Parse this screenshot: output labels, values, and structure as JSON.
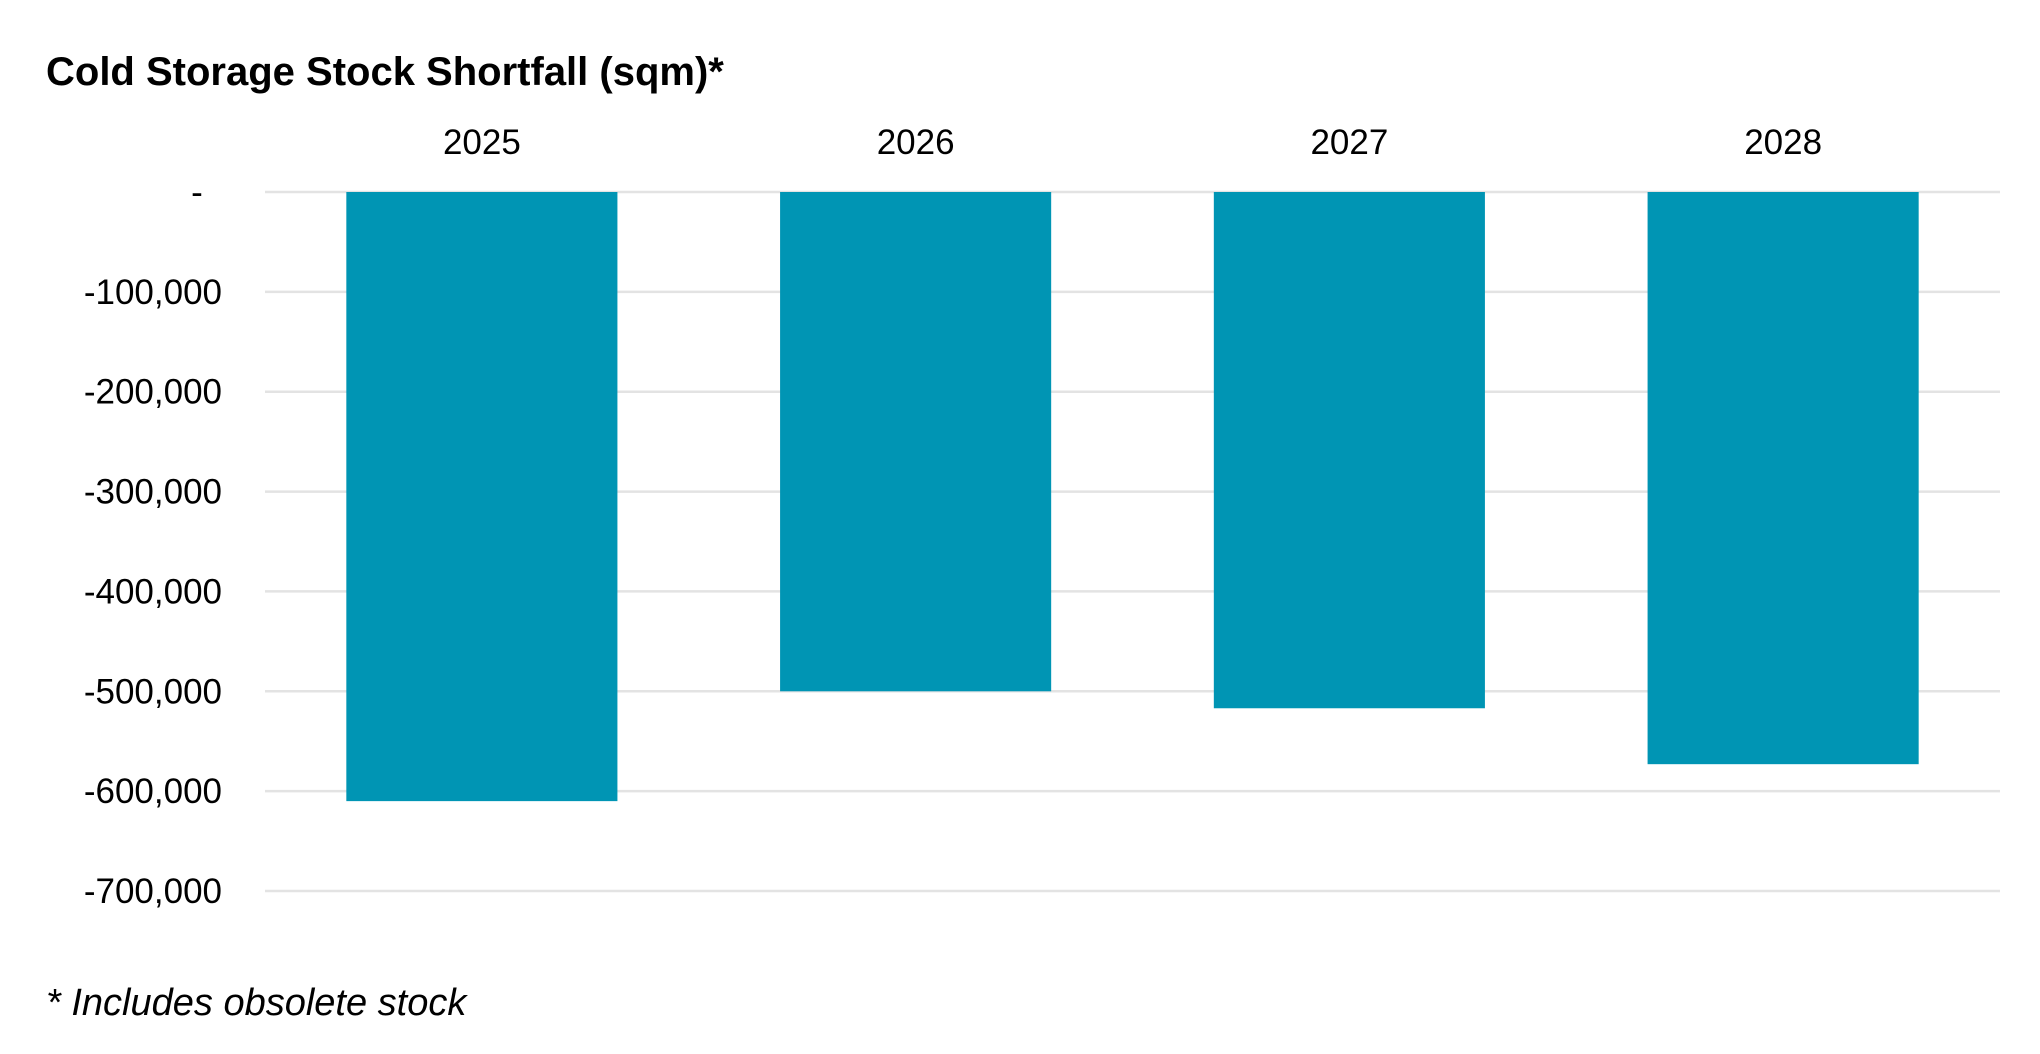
{
  "chart_data": {
    "type": "bar",
    "title": "Cold Storage Stock Shortfall (sqm)*",
    "footnote": "* Includes obsolete stock",
    "categories": [
      "2025",
      "2026",
      "2027",
      "2028"
    ],
    "values": [
      -610000,
      -500000,
      -517000,
      -573000
    ],
    "xlabel": "",
    "ylabel": "",
    "ylim": [
      -700000,
      0
    ],
    "yticks": [
      0,
      -100000,
      -200000,
      -300000,
      -400000,
      -500000,
      -600000,
      -700000
    ],
    "ytick_labels": [
      "-",
      "-100,000",
      "-200,000",
      "-300,000",
      "-400,000",
      "-500,000",
      "-600,000",
      "-700,000"
    ],
    "x_axis_position": "top",
    "grid": true,
    "legend": "none",
    "bar_color": "#0095B4",
    "grid_color": "#E3E3E3"
  }
}
